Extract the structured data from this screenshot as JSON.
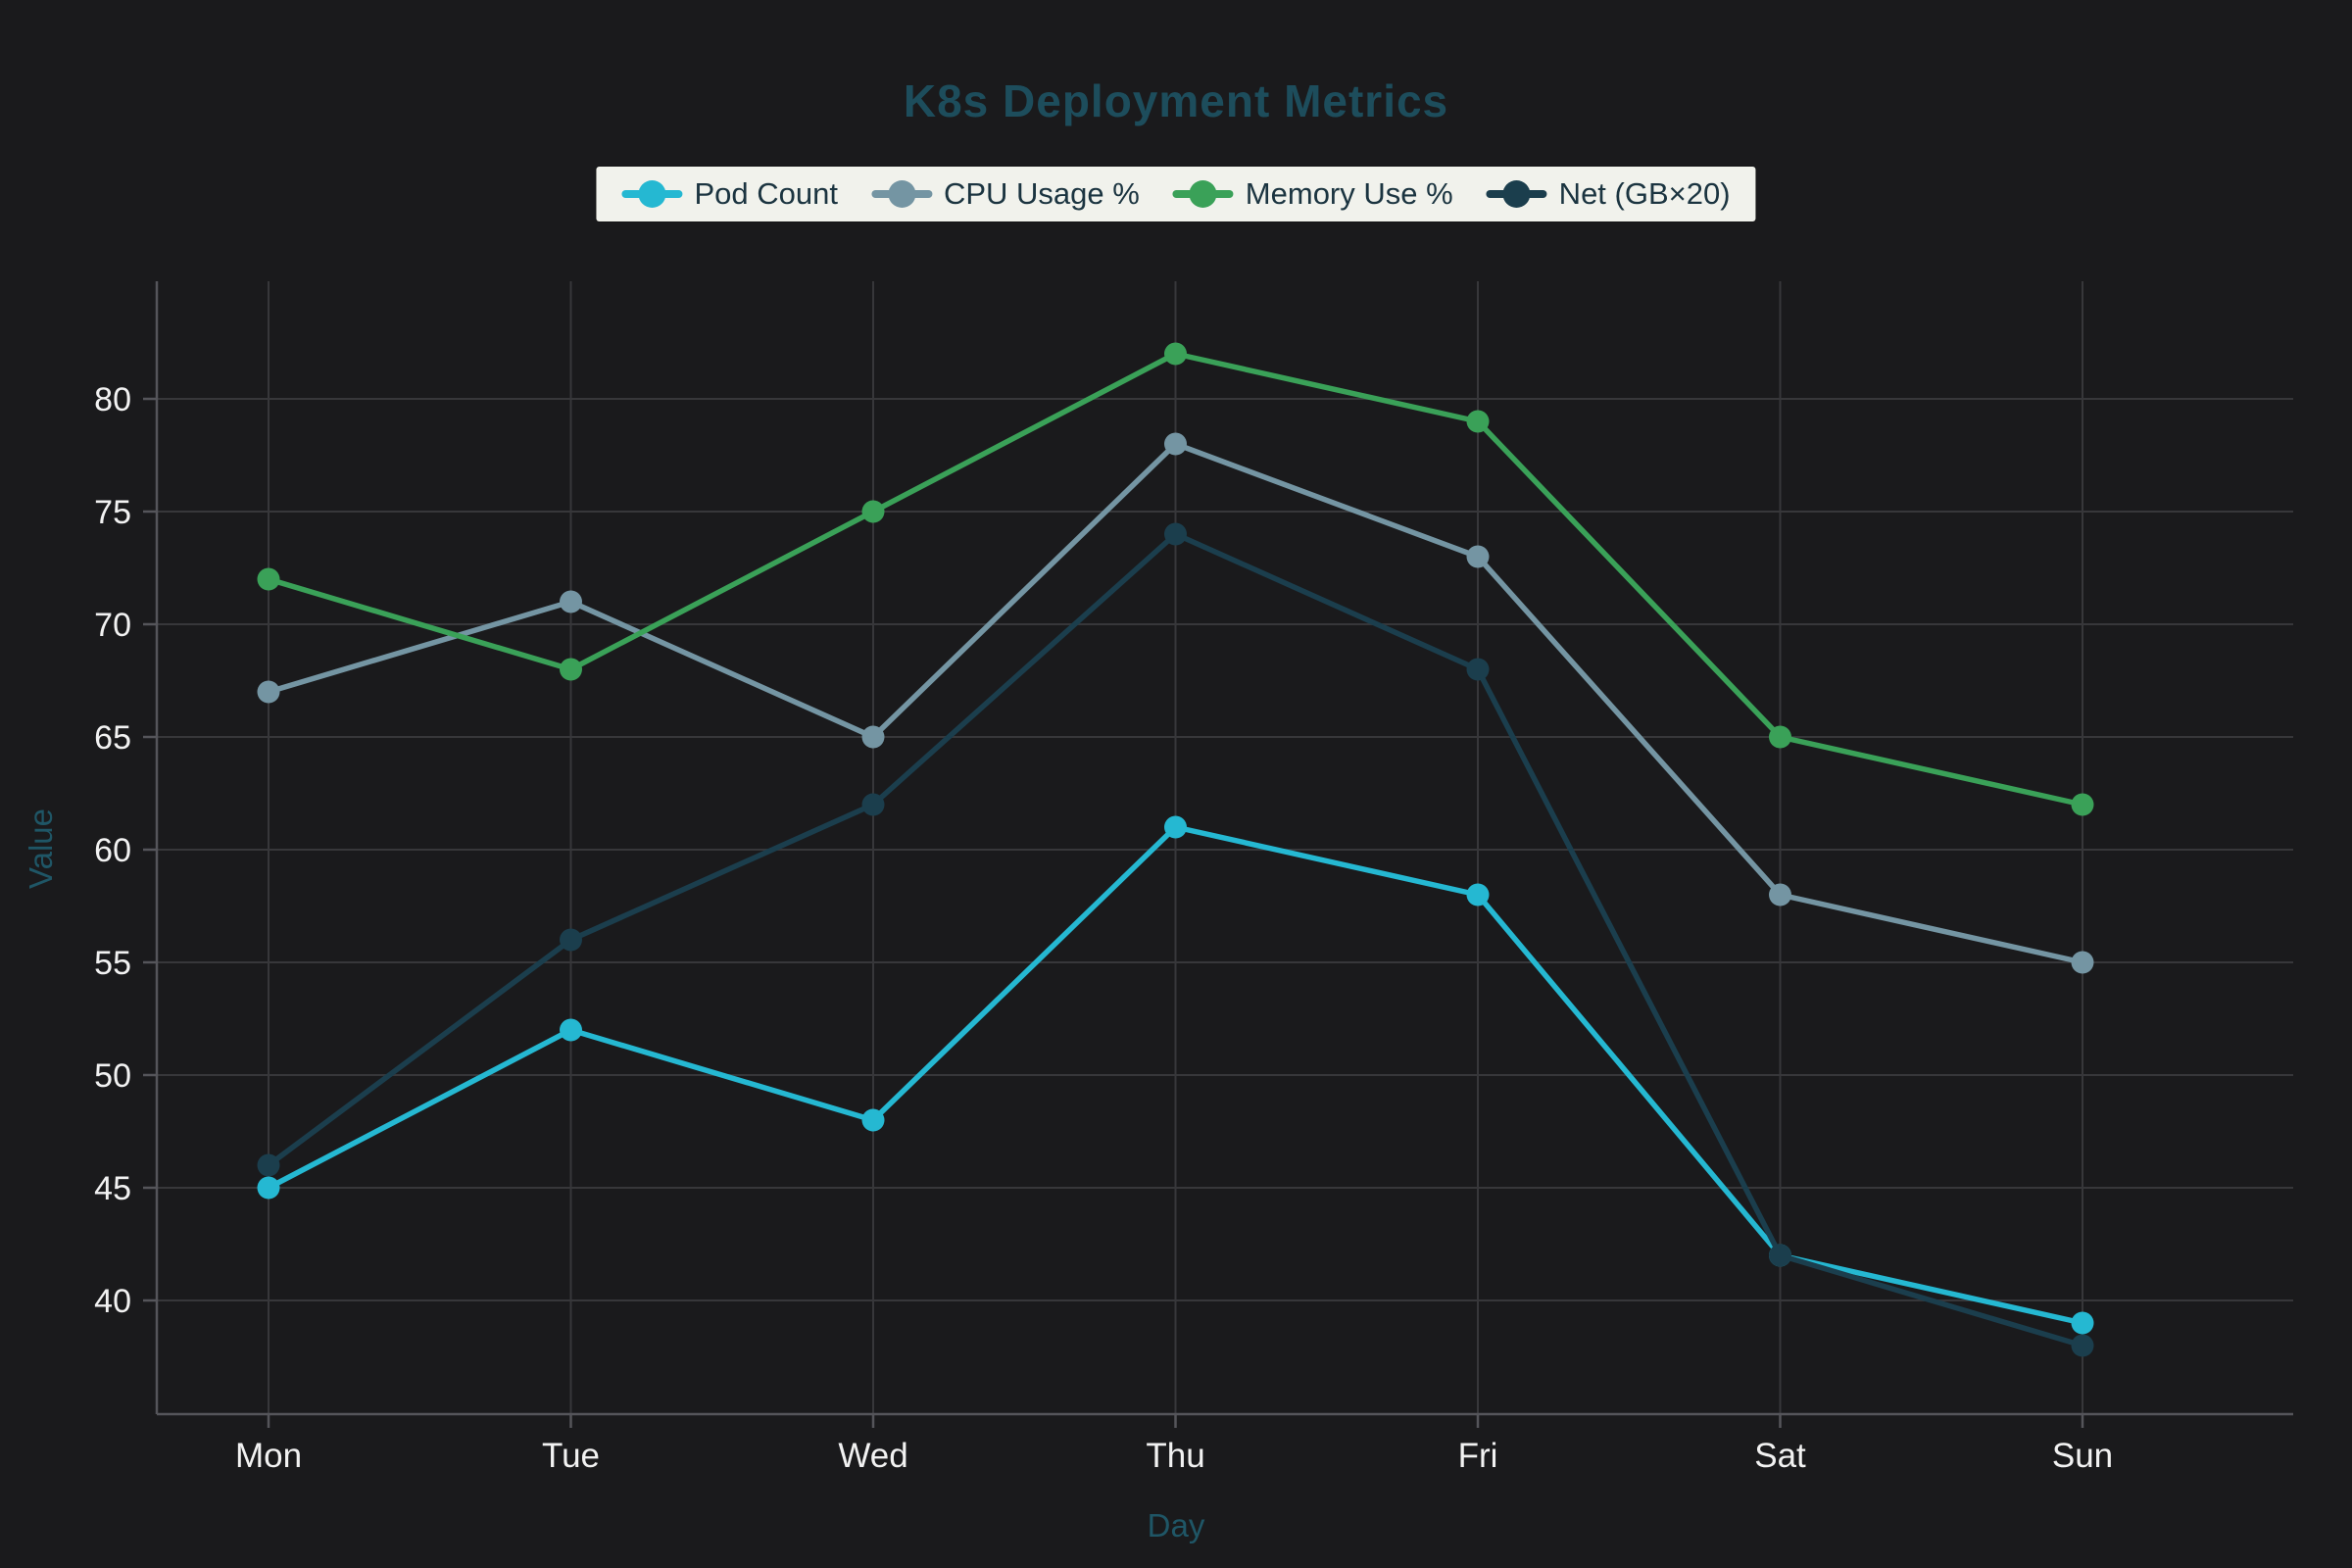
{
  "chart_data": {
    "type": "line",
    "title": "K8s Deployment Metrics",
    "xlabel": "Day",
    "ylabel": "Value",
    "categories": [
      "Mon",
      "Tue",
      "Wed",
      "Thu",
      "Fri",
      "Sat",
      "Sun"
    ],
    "y_ticks": [
      40,
      45,
      50,
      55,
      60,
      65,
      70,
      75,
      80
    ],
    "ylim": [
      35,
      85.2
    ],
    "grid": true,
    "legend_position": "top-center",
    "series": [
      {
        "name": "Pod Count",
        "color": "#25b8d2",
        "values": [
          45,
          52,
          48,
          61,
          58,
          42,
          39
        ]
      },
      {
        "name": "CPU Usage %",
        "color": "#7495a3",
        "values": [
          67,
          71,
          65,
          78,
          73,
          58,
          55
        ]
      },
      {
        "name": "Memory Use %",
        "color": "#3aa158",
        "values": [
          72,
          68,
          75,
          82,
          79,
          65,
          62
        ]
      },
      {
        "name": "Net (GB×20)",
        "color": "#1b3e4d",
        "values": [
          46,
          56,
          62,
          74,
          68,
          42,
          38
        ]
      }
    ],
    "colors": {
      "background": "#1a1a1c",
      "grid": "#37373a",
      "axis": "#55555a",
      "tick_label": "#f2f2f2",
      "title": "#1d4d5c",
      "axis_title": "#1f5666",
      "legend_bg": "#f1f2ec",
      "legend_text": "#1b3440"
    }
  }
}
